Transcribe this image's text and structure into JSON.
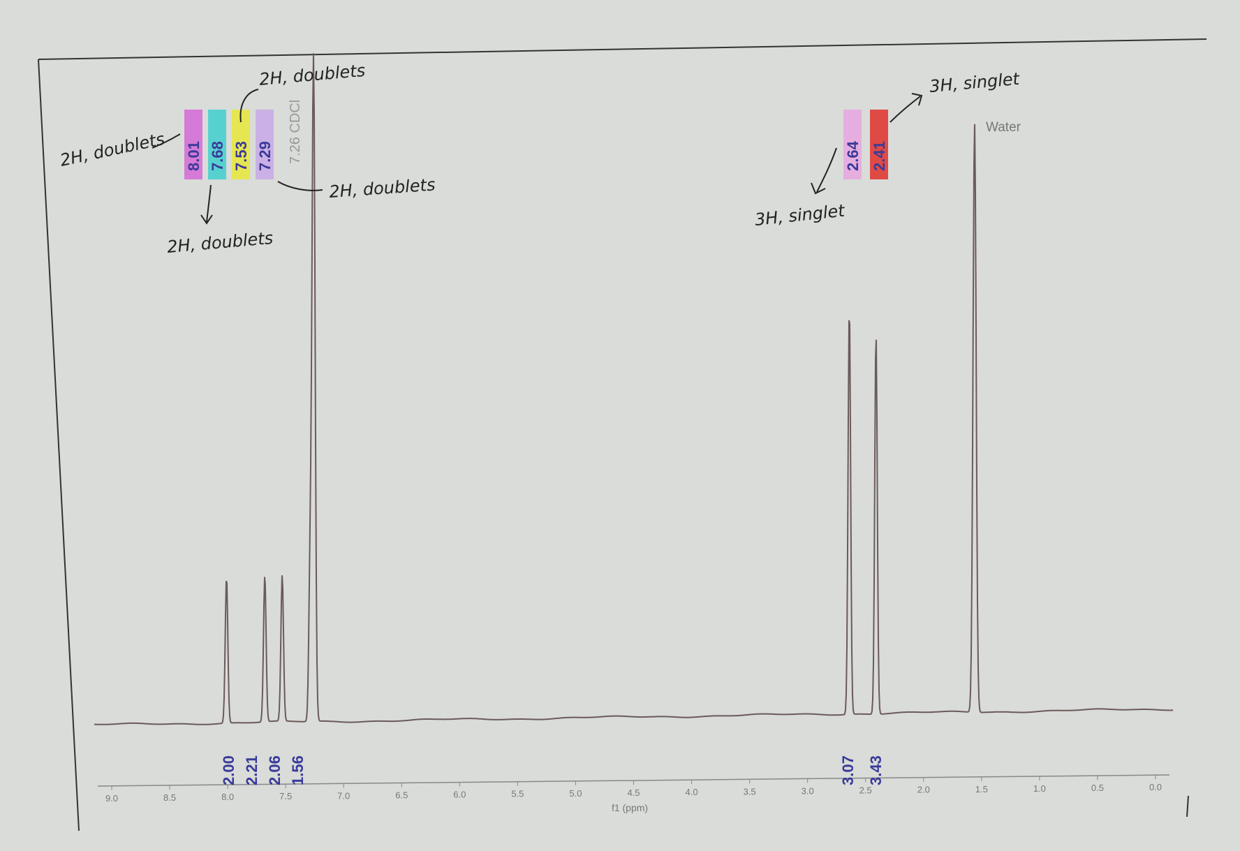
{
  "chart_data": {
    "type": "line",
    "xlabel": "f1 (ppm)",
    "x_ticks": [
      "9.0",
      "8.5",
      "8.0",
      "7.5",
      "7.0",
      "6.5",
      "6.0",
      "5.5",
      "5.0",
      "4.5",
      "4.0",
      "3.5",
      "3.0",
      "2.5",
      "2.0",
      "1.5",
      "1.0",
      "0.5",
      "0.0"
    ],
    "xlim": [
      9.0,
      0.0
    ],
    "grid": false,
    "series": [
      {
        "peaks": [
          {
            "ppm": 8.01,
            "height": 0.22
          },
          {
            "ppm": 7.68,
            "height": 0.22
          },
          {
            "ppm": 7.53,
            "height": 0.22
          },
          {
            "ppm": 7.29,
            "height": 0.21
          },
          {
            "ppm": 7.26,
            "height": 1.0
          },
          {
            "ppm": 2.64,
            "height": 0.62
          },
          {
            "ppm": 2.41,
            "height": 0.58
          },
          {
            "ppm": 1.56,
            "height": 0.9
          }
        ]
      }
    ],
    "peak_labels": [
      {
        "text": "8.01",
        "ppm": 8.01,
        "highlight": "#d469d6"
      },
      {
        "text": "7.68",
        "ppm": 7.68,
        "highlight": "#3fcfcf"
      },
      {
        "text": "7.53",
        "ppm": 7.53,
        "highlight": "#e8e83c"
      },
      {
        "text": "7.29",
        "ppm": 7.29,
        "highlight": "#c8a8e8"
      },
      {
        "text": "2.64",
        "ppm": 2.64,
        "highlight": "#e8a6e0"
      },
      {
        "text": "2.41",
        "ppm": 2.41,
        "highlight": "#e0302a"
      }
    ],
    "solvent_label": {
      "text": "7.26 CDCl",
      "ppm": 7.26
    },
    "water_label": {
      "text": "Water",
      "ppm": 1.56
    },
    "integrals": [
      {
        "text": "2.00",
        "ppm": 8.01
      },
      {
        "text": "2.21",
        "ppm": 7.68
      },
      {
        "text": "2.06",
        "ppm": 7.53
      },
      {
        "text": "1.56",
        "ppm": 7.29
      },
      {
        "text": "3.07",
        "ppm": 2.64
      },
      {
        "text": "3.43",
        "ppm": 2.41
      }
    ]
  },
  "annotations": {
    "a1": "2H, doublets",
    "a2": "2H, doublets",
    "a3": "2H, doublets",
    "a4": "2H, doublets",
    "a5": "3H, singlet",
    "a6": "3H, singlet"
  },
  "colors": {
    "spectrum_line": "#6b5a5a",
    "background": "#d9dcd8",
    "label_text": "#3a3a9a"
  }
}
